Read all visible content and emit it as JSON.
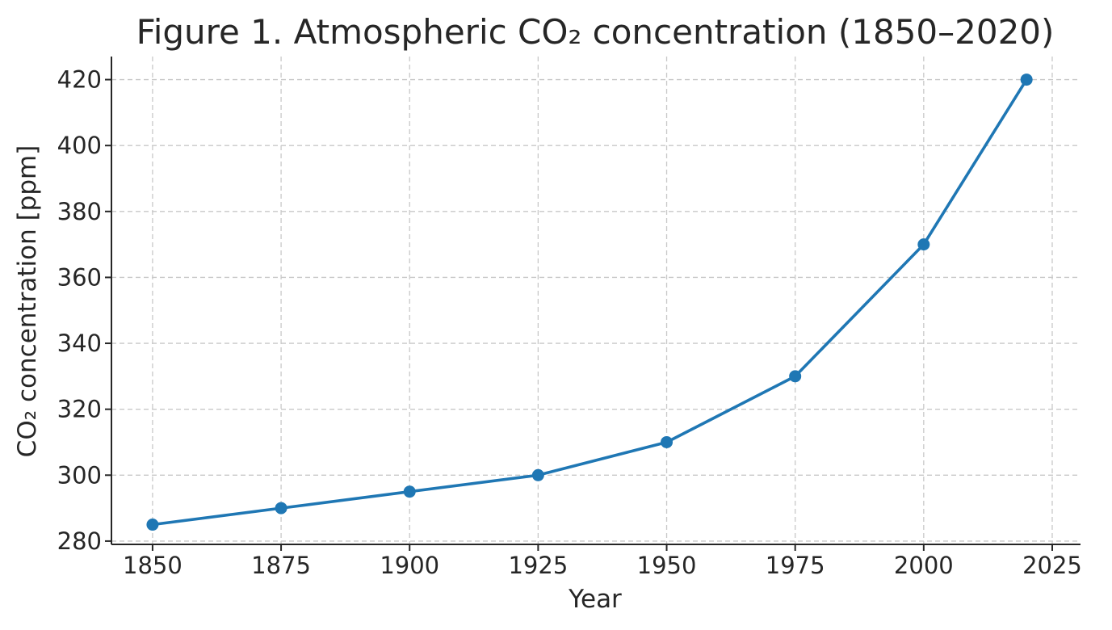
{
  "chart_data": {
    "type": "line",
    "title": "Figure 1. Atmospheric CO₂ concentration (1850–2020)",
    "xlabel": "Year",
    "ylabel": "CO₂ concentration [ppm]",
    "xlim": [
      1842,
      2030.5
    ],
    "ylim": [
      279,
      427
    ],
    "xticks": [
      1850,
      1875,
      1900,
      1925,
      1950,
      1975,
      2000,
      2025
    ],
    "yticks": [
      280,
      300,
      320,
      340,
      360,
      380,
      400,
      420
    ],
    "grid": true,
    "series": [
      {
        "name": "CO₂",
        "color": "#1f77b4",
        "x": [
          1850,
          1875,
          1900,
          1925,
          1950,
          1975,
          2000,
          2020
        ],
        "y": [
          285,
          290,
          295,
          300,
          310,
          330,
          370,
          420
        ]
      }
    ]
  }
}
